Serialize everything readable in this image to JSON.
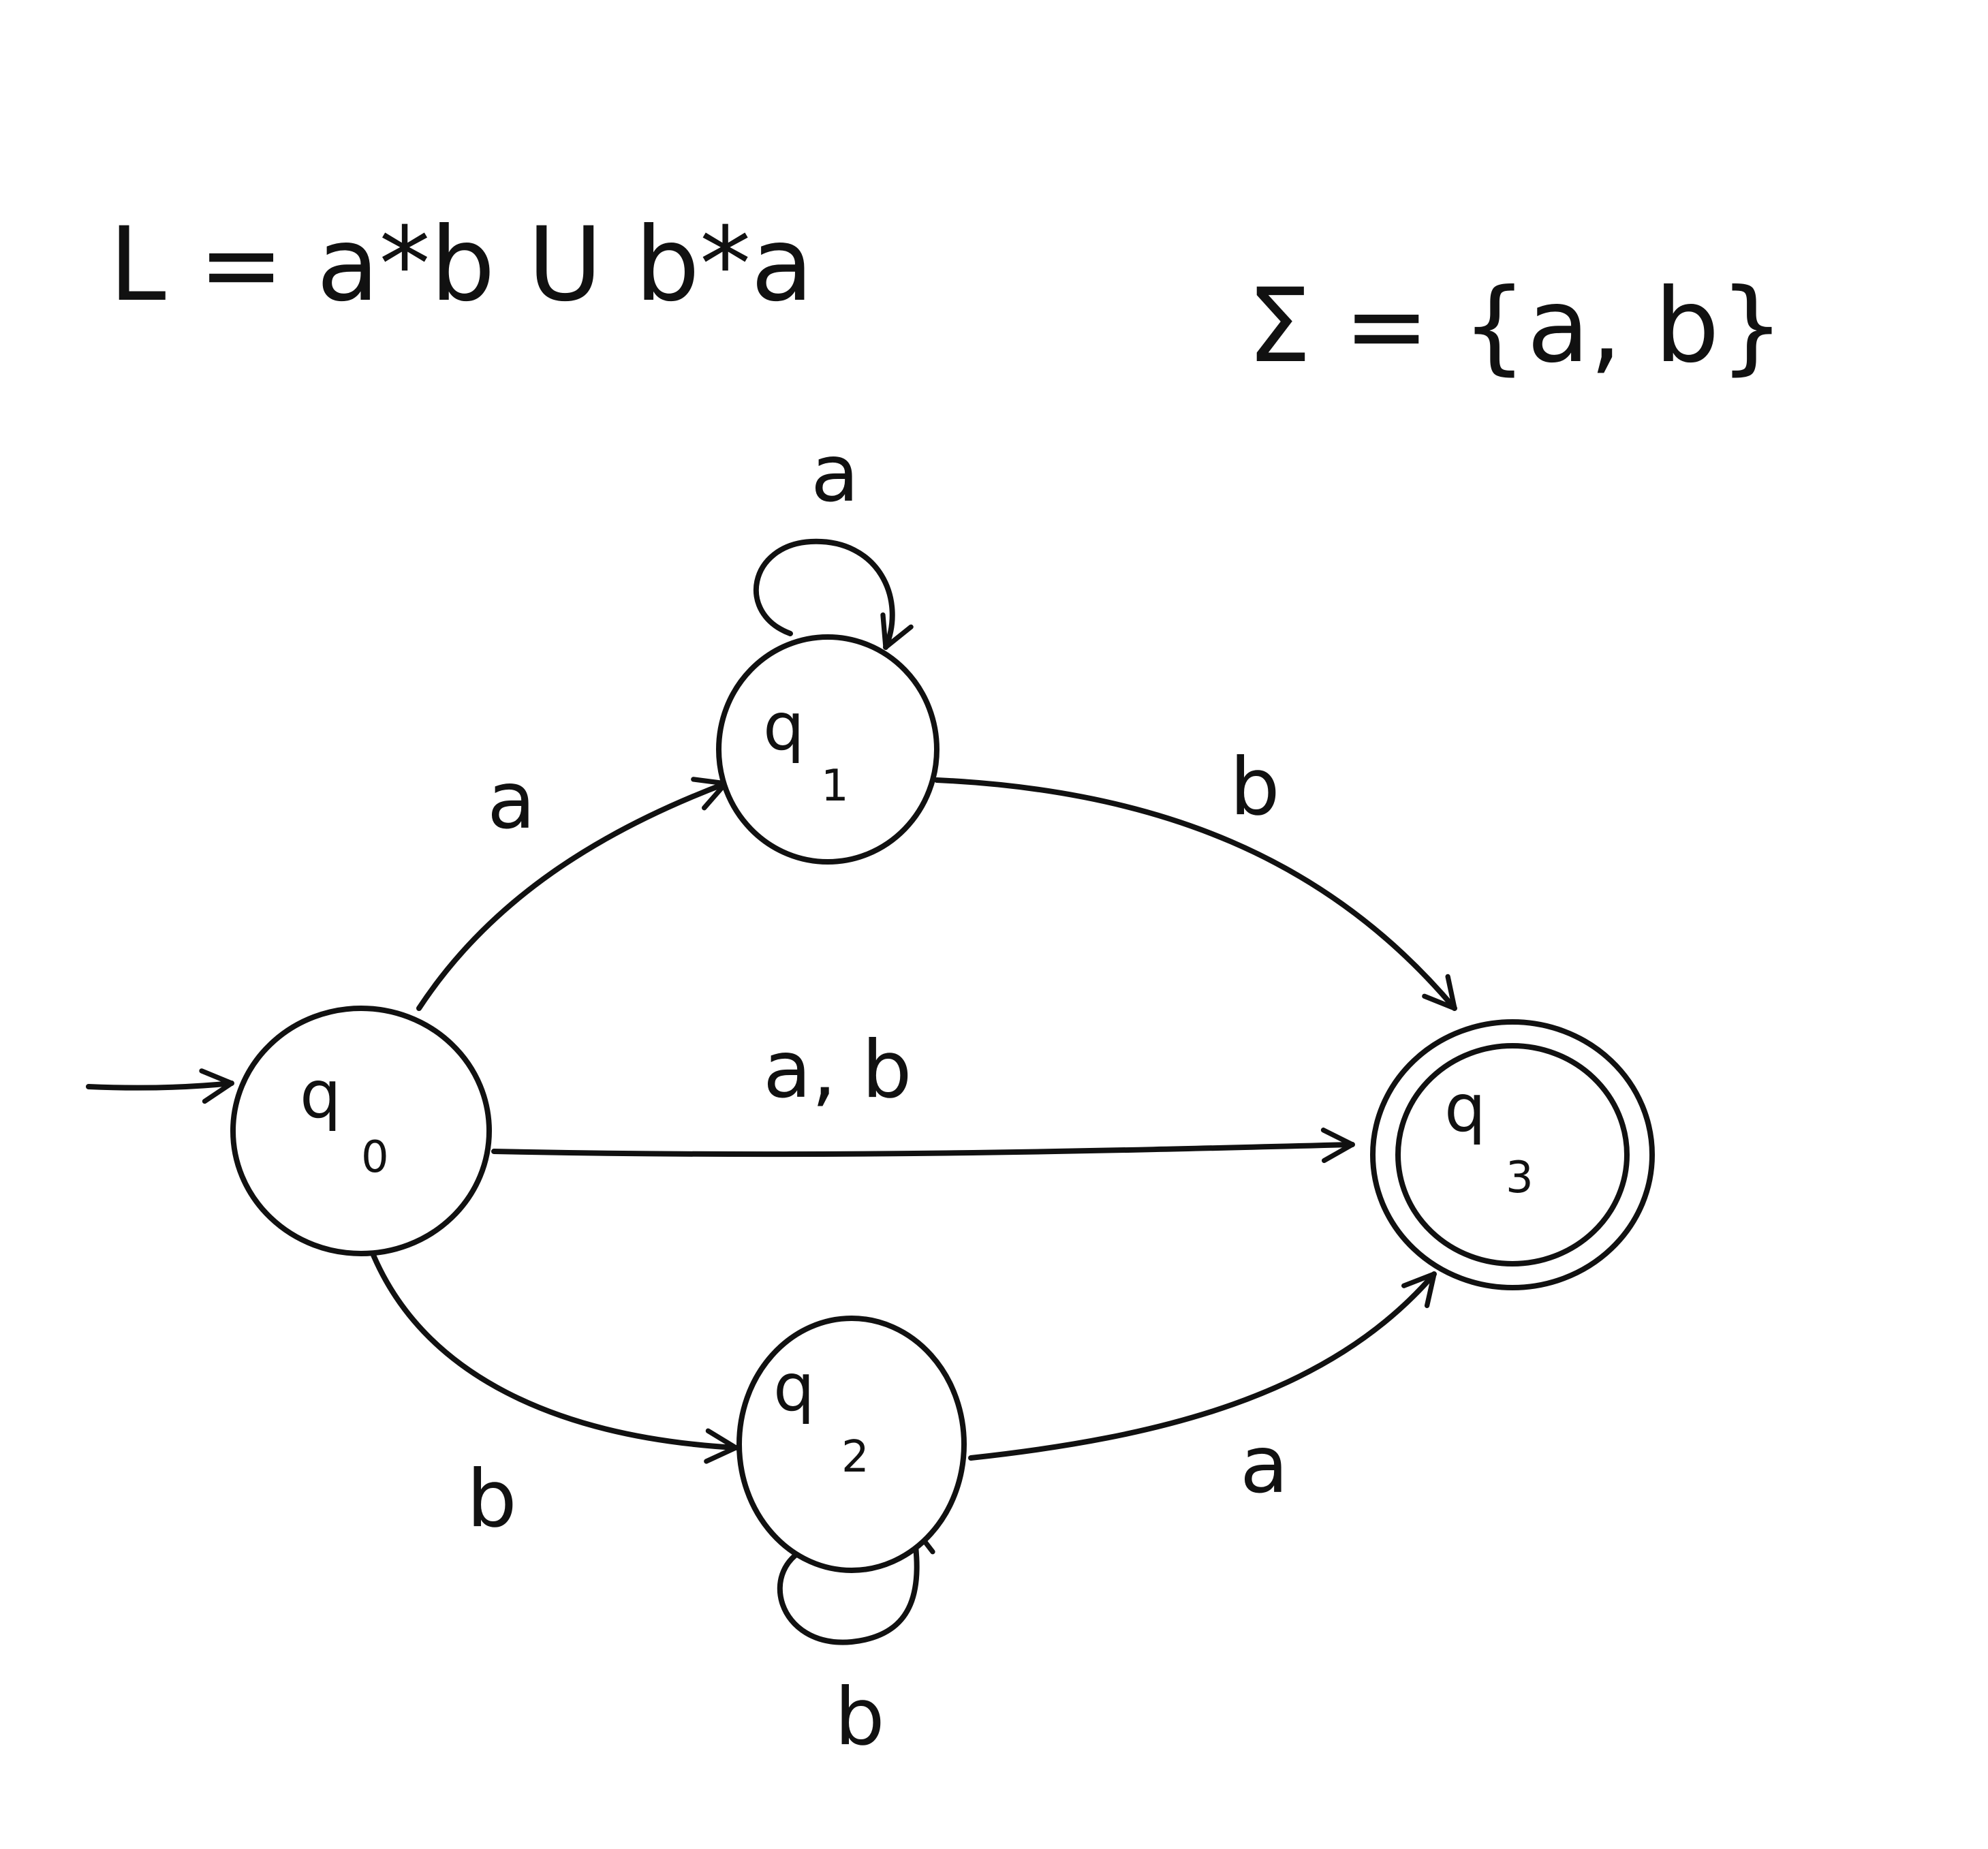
{
  "header": {
    "language": "L = a*b U b*a",
    "alphabet": "Σ = {a, b}"
  },
  "states": {
    "q0": {
      "name": "q",
      "sub": "0",
      "initial": true
    },
    "q1": {
      "name": "q",
      "sub": "1"
    },
    "q2": {
      "name": "q",
      "sub": "2"
    },
    "q3": {
      "name": "q",
      "sub": "3",
      "accepting": true
    }
  },
  "transitions": {
    "q0_q1": {
      "from": "q0",
      "to": "q1",
      "label": "a"
    },
    "q1_q1": {
      "from": "q1",
      "to": "q1",
      "label": "a"
    },
    "q1_q3": {
      "from": "q1",
      "to": "q3",
      "label": "b"
    },
    "q0_q3": {
      "from": "q0",
      "to": "q3",
      "label": "a, b"
    },
    "q0_q2": {
      "from": "q0",
      "to": "q2",
      "label": "b"
    },
    "q2_q2": {
      "from": "q2",
      "to": "q2",
      "label": "b"
    },
    "q2_q3": {
      "from": "q2",
      "to": "q3",
      "label": "a"
    }
  }
}
